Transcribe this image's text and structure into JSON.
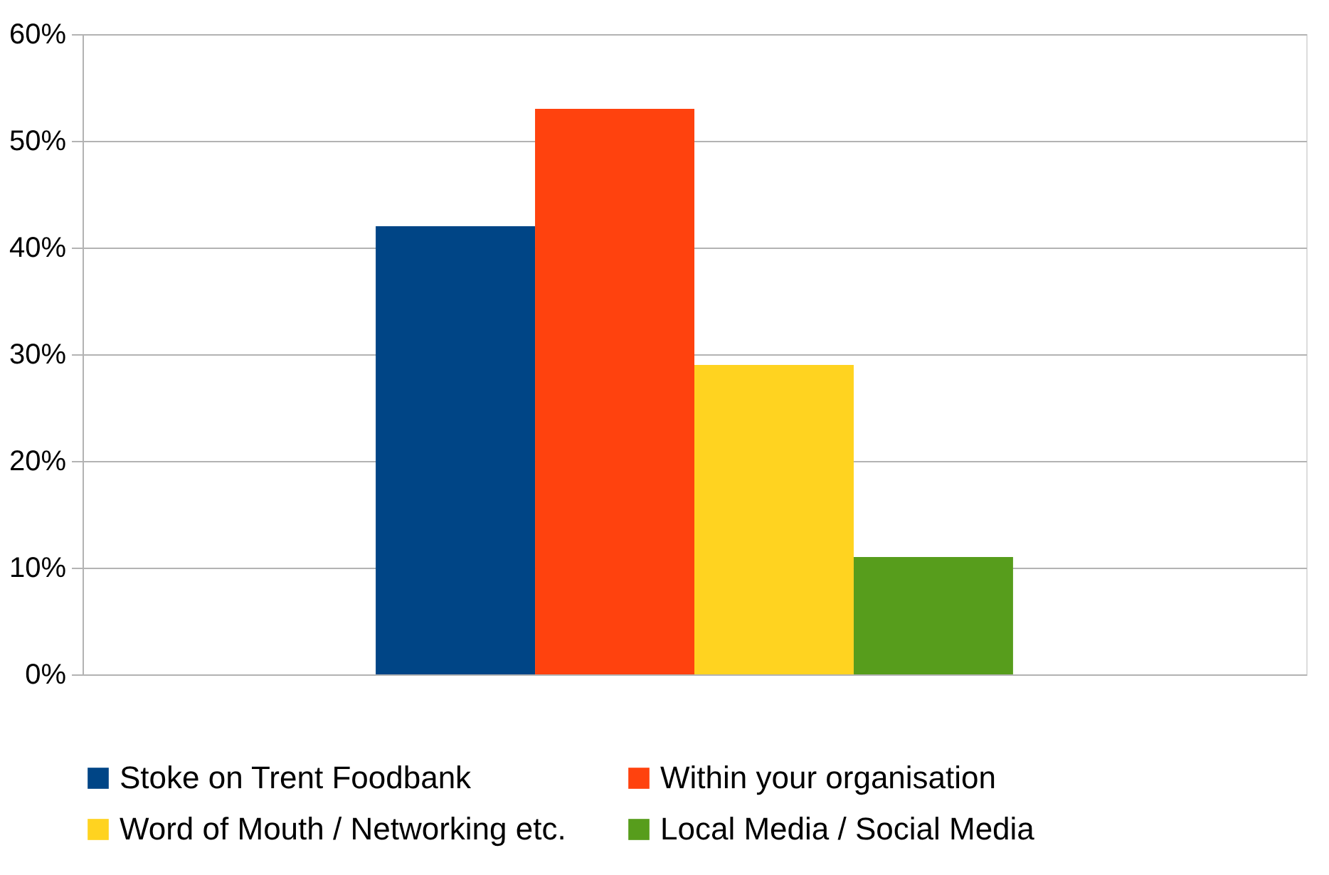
{
  "chart_data": {
    "type": "bar",
    "categories": [
      null
    ],
    "series": [
      {
        "name": "Stoke on Trent Foodbank",
        "color": "#004586",
        "values": [
          42
        ]
      },
      {
        "name": "Within your organisation",
        "color": "#ff420e",
        "values": [
          53
        ]
      },
      {
        "name": "Word of Mouth / Networking etc.",
        "color": "#ffd320",
        "values": [
          29
        ]
      },
      {
        "name": "Local Media / Social Media",
        "color": "#579d1c",
        "values": [
          11
        ]
      }
    ],
    "ylim": [
      0,
      60
    ],
    "yticks": [
      {
        "value": 0,
        "label": "0%"
      },
      {
        "value": 10,
        "label": "10%"
      },
      {
        "value": 20,
        "label": "20%"
      },
      {
        "value": 30,
        "label": "30%"
      },
      {
        "value": 40,
        "label": "40%"
      },
      {
        "value": 50,
        "label": "50%"
      },
      {
        "value": 60,
        "label": "60%"
      }
    ],
    "grid": "y",
    "legend": "bottom"
  }
}
